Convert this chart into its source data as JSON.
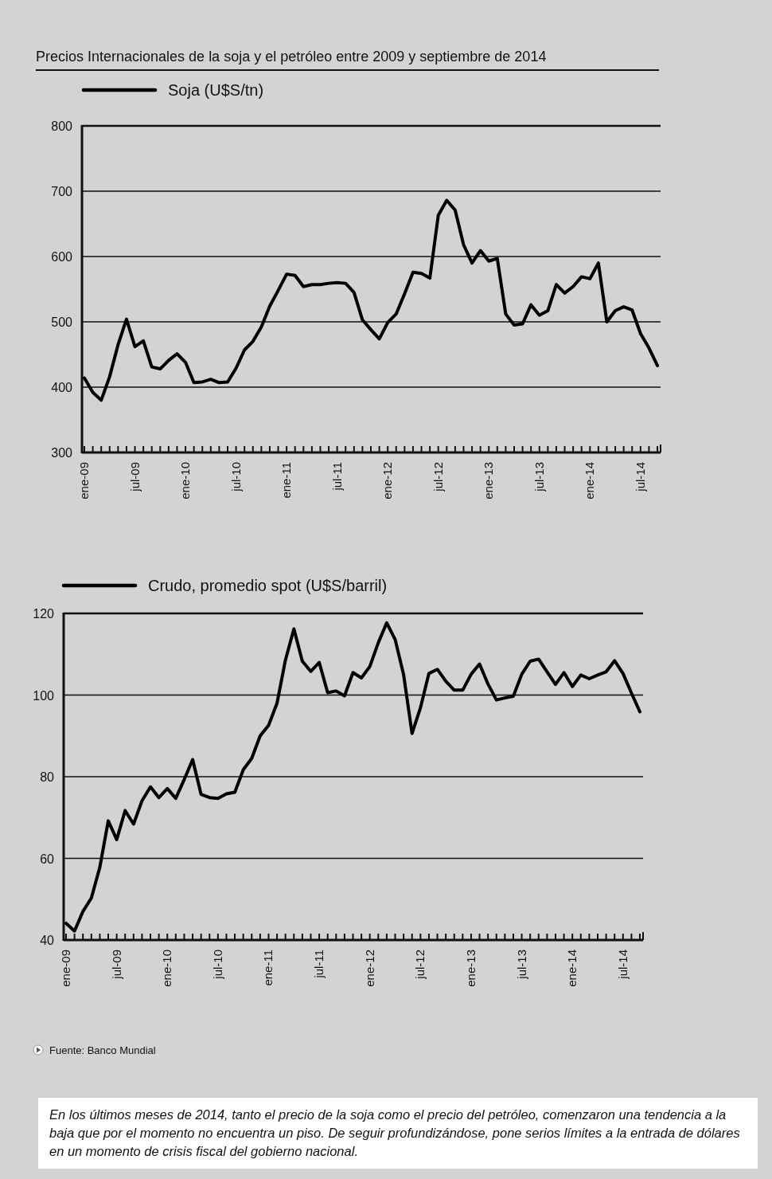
{
  "chart_data": [
    {
      "type": "line",
      "title": "Precios Internacionales de la soja y el petróleo entre 2009 y septiembre de 2014",
      "categories": [
        "ene-09",
        null,
        null,
        null,
        null,
        null,
        "jul-09",
        null,
        null,
        null,
        null,
        null,
        "ene-10",
        null,
        null,
        null,
        null,
        null,
        "jul-10",
        null,
        null,
        null,
        null,
        null,
        "ene-11",
        null,
        null,
        null,
        null,
        null,
        "jul-11",
        null,
        null,
        null,
        null,
        null,
        "ene-12",
        null,
        null,
        null,
        null,
        null,
        "jul-12",
        null,
        null,
        null,
        null,
        null,
        "ene-13",
        null,
        null,
        null,
        null,
        null,
        "jul-13",
        null,
        null,
        null,
        null,
        null,
        "ene-14",
        null,
        null,
        null,
        null,
        null,
        "jul-14",
        null,
        null
      ],
      "series": [
        {
          "name": "Soja (U$S/tn)",
          "color": "#000000",
          "values": [
            414,
            392,
            380,
            416,
            465,
            504,
            462,
            471,
            431,
            428,
            441,
            451,
            438,
            407,
            408,
            412,
            407,
            408,
            429,
            457,
            470,
            492,
            524,
            548,
            573,
            571,
            554,
            557,
            557,
            559,
            560,
            559,
            545,
            503,
            488,
            474,
            499,
            512,
            543,
            576,
            574,
            567,
            663,
            686,
            671,
            618,
            590,
            609,
            593,
            597,
            512,
            495,
            497,
            526,
            510,
            517,
            557,
            544,
            554,
            569,
            566,
            590,
            500,
            517,
            523,
            518,
            482,
            460,
            433
          ]
        }
      ],
      "ylim": [
        300,
        800
      ],
      "yticks": [
        300,
        400,
        500,
        600,
        700,
        800
      ],
      "grid": "y",
      "legend": "top left",
      "line_style": "solid"
    },
    {
      "type": "line",
      "categories": [
        "ene-09",
        null,
        null,
        null,
        null,
        null,
        "jul-09",
        null,
        null,
        null,
        null,
        null,
        "ene-10",
        null,
        null,
        null,
        null,
        null,
        "jul-10",
        null,
        null,
        null,
        null,
        null,
        "ene-11",
        null,
        null,
        null,
        null,
        null,
        "jul-11",
        null,
        null,
        null,
        null,
        null,
        "ene-12",
        null,
        null,
        null,
        null,
        null,
        "jul-12",
        null,
        null,
        null,
        null,
        null,
        "ene-13",
        null,
        null,
        null,
        null,
        null,
        "jul-13",
        null,
        null,
        null,
        null,
        null,
        "ene-14",
        null,
        null,
        null,
        null,
        null,
        "jul-14",
        null,
        null
      ],
      "series": [
        {
          "name": "Crudo, promedio spot (U$S/barril)",
          "color": "#000000",
          "values": [
            44.1,
            42.2,
            47.0,
            50.3,
            57.8,
            69.2,
            64.6,
            71.7,
            68.4,
            74.1,
            77.5,
            74.9,
            77.1,
            74.7,
            79.3,
            84.2,
            75.7,
            74.9,
            74.7,
            75.8,
            76.2,
            81.7,
            84.5,
            90.0,
            92.6,
            98.0,
            108.6,
            116.2,
            108.3,
            105.8,
            108.0,
            100.6,
            101.0,
            99.8,
            105.5,
            104.2,
            107.0,
            112.8,
            117.7,
            113.6,
            105.0,
            90.6,
            96.9,
            105.3,
            106.3,
            103.4,
            101.2,
            101.2,
            105.1,
            107.6,
            102.7,
            98.8,
            99.3,
            99.7,
            105.1,
            108.3,
            108.8,
            105.7,
            102.6,
            105.5,
            102.1,
            104.9,
            104.0,
            104.9,
            105.7,
            108.4,
            105.3,
            100.5,
            95.9
          ]
        }
      ],
      "ylim": [
        40,
        120
      ],
      "yticks": [
        40,
        60,
        80,
        100,
        120
      ],
      "grid": "y",
      "legend": "top left",
      "line_style": "solid",
      "annotations": [
        "Fuente: Banco Mundial",
        "En los últimos meses de 2014, tanto el precio de la soja como el precio del petróleo, comenzaron una tendencia a la baja que por el momento no encuentra un piso. De seguir profundizándose, pone serios límites a la entrada de dólares en un momento de crisis fiscal del gobierno nacional."
      ]
    }
  ]
}
